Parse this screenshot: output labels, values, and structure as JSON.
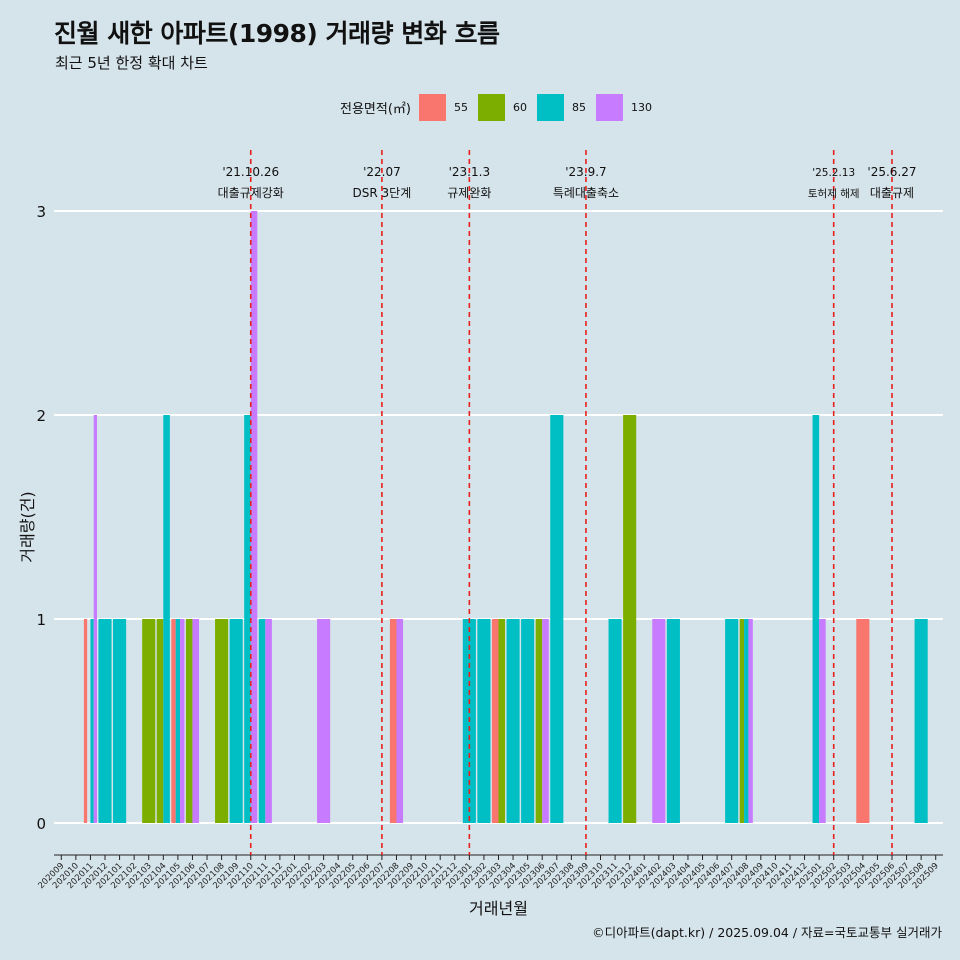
{
  "title": "진월 새한 아파트(1998) 거래량 변화 흐름",
  "subtitle": "최근 5년 한정 확대 차트",
  "caption": "©디아파트(dapt.kr) / 2025.09.04 / 자료=국토교통부 실거래가",
  "legend": {
    "title": "전용면적(㎡)",
    "items": [
      {
        "label": "55",
        "color": "#f8766d"
      },
      {
        "label": "60",
        "color": "#7cae00"
      },
      {
        "label": "85",
        "color": "#00bfc4"
      },
      {
        "label": "130",
        "color": "#c77cff"
      }
    ]
  },
  "chart_data": {
    "type": "bar",
    "xlabel": "거래년월",
    "ylabel": "거래량(건)",
    "ylim": [
      0,
      3
    ],
    "yticks": [
      0,
      1,
      2,
      3
    ],
    "grid": "horizontal",
    "legend_position": "top",
    "categories": [
      "202009",
      "202010",
      "202011",
      "202012",
      "202101",
      "202102",
      "202103",
      "202104",
      "202105",
      "202106",
      "202107",
      "202108",
      "202109",
      "202110",
      "202111",
      "202112",
      "202201",
      "202202",
      "202203",
      "202204",
      "202205",
      "202206",
      "202207",
      "202208",
      "202209",
      "202210",
      "202211",
      "202212",
      "202301",
      "202302",
      "202303",
      "202304",
      "202305",
      "202306",
      "202307",
      "202308",
      "202309",
      "202310",
      "202311",
      "202312",
      "202401",
      "202402",
      "202403",
      "202404",
      "202405",
      "202406",
      "202407",
      "202408",
      "202409",
      "202410",
      "202411",
      "202412",
      "202501",
      "202502",
      "202503",
      "202504",
      "202505",
      "202506",
      "202507",
      "202508",
      "202509"
    ],
    "bars": [
      {
        "x": "202011",
        "values": {
          "55": 1,
          "60": 0,
          "85": 1,
          "130": 2
        }
      },
      {
        "x": "202012",
        "values": {
          "85": 1
        }
      },
      {
        "x": "202101",
        "values": {
          "85": 1
        }
      },
      {
        "x": "202103",
        "values": {
          "60": 1
        }
      },
      {
        "x": "202104",
        "values": {
          "60": 1,
          "85": 2
        }
      },
      {
        "x": "202105",
        "values": {
          "55": 1,
          "85": 1,
          "130": 1
        }
      },
      {
        "x": "202106",
        "values": {
          "60": 1,
          "130": 1
        }
      },
      {
        "x": "202108",
        "values": {
          "60": 1
        }
      },
      {
        "x": "202109",
        "values": {
          "85": 1
        }
      },
      {
        "x": "202110",
        "values": {
          "85": 2,
          "130": 3
        }
      },
      {
        "x": "202111",
        "values": {
          "85": 1,
          "130": 1
        }
      },
      {
        "x": "202203",
        "values": {
          "130": 1
        }
      },
      {
        "x": "202208",
        "values": {
          "55": 1,
          "130": 1
        }
      },
      {
        "x": "202301",
        "values": {
          "85": 1
        }
      },
      {
        "x": "202302",
        "values": {
          "85": 1
        }
      },
      {
        "x": "202303",
        "values": {
          "55": 1,
          "60": 1
        }
      },
      {
        "x": "202304",
        "values": {
          "85": 1
        }
      },
      {
        "x": "202305",
        "values": {
          "85": 1
        }
      },
      {
        "x": "202306",
        "values": {
          "60": 1,
          "130": 1
        }
      },
      {
        "x": "202307",
        "values": {
          "85": 2
        }
      },
      {
        "x": "202311",
        "values": {
          "85": 1
        }
      },
      {
        "x": "202312",
        "values": {
          "60": 2
        }
      },
      {
        "x": "202402",
        "values": {
          "130": 1
        }
      },
      {
        "x": "202403",
        "values": {
          "85": 1
        }
      },
      {
        "x": "202407",
        "values": {
          "85": 1
        }
      },
      {
        "x": "202408",
        "values": {
          "60": 1,
          "85": 1,
          "130": 1
        }
      },
      {
        "x": "202501",
        "values": {
          "85": 2,
          "130": 1
        }
      },
      {
        "x": "202504",
        "values": {
          "55": 1
        }
      },
      {
        "x": "202508",
        "values": {
          "85": 1
        }
      }
    ],
    "annotations": [
      {
        "x": "202110",
        "date": "'21.10.26",
        "label": "대출규제강화"
      },
      {
        "x": "202207",
        "date": "'22.07",
        "label": "DSR 3단계"
      },
      {
        "x": "202301",
        "date": "'23.1.3",
        "label": "규제완화"
      },
      {
        "x": "202309",
        "date": "'23.9.7",
        "label": "특례대출축소"
      },
      {
        "x": "202502",
        "date": "'25.2.13",
        "label": "토허제 해제"
      },
      {
        "x": "202506",
        "date": "'25.6.27",
        "label": "대출규제"
      }
    ]
  }
}
